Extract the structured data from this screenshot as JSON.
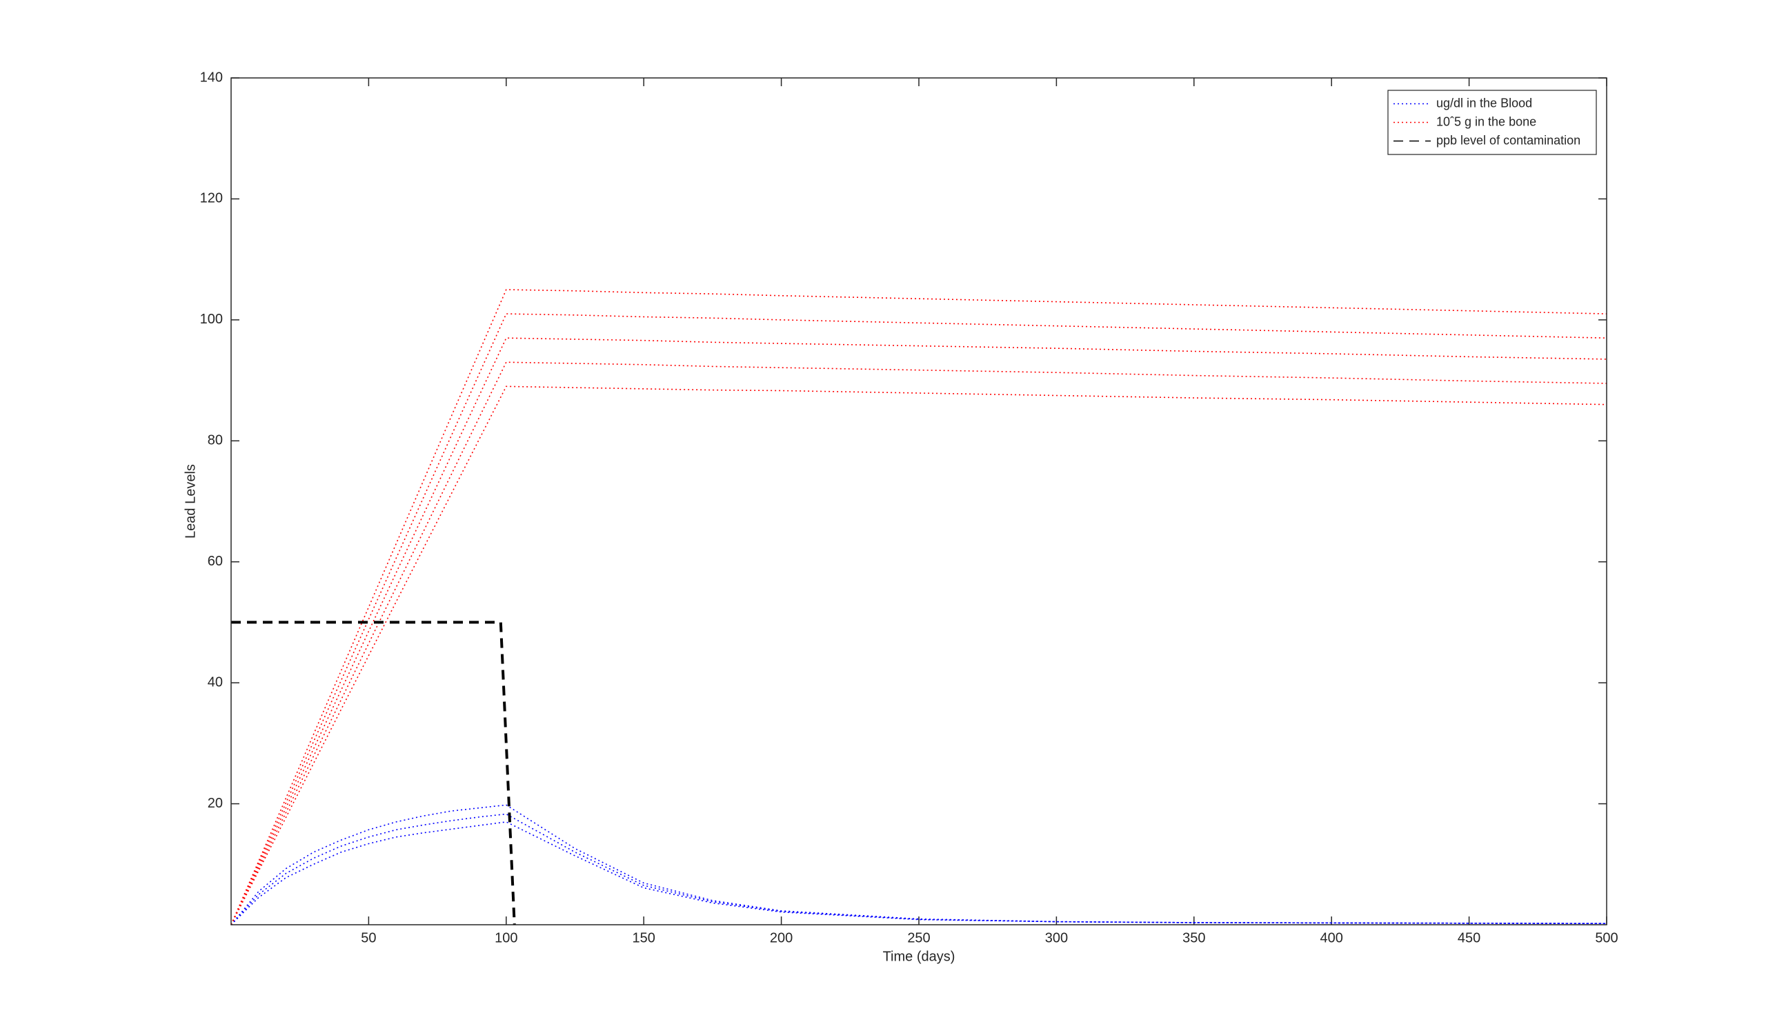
{
  "chart_data": {
    "type": "line",
    "xlabel": "Time (days)",
    "ylabel": "Lead Levels",
    "x": [
      0,
      10,
      20,
      30,
      40,
      50,
      60,
      70,
      80,
      90,
      100,
      125,
      150,
      175,
      200,
      250,
      300,
      350,
      400,
      450,
      500
    ],
    "xlim": [
      0,
      500
    ],
    "xticks": [
      50,
      100,
      150,
      200,
      250,
      300,
      350,
      400,
      450,
      500
    ],
    "ylim": [
      0,
      140
    ],
    "yticks": [
      20,
      40,
      60,
      80,
      100,
      120,
      140
    ],
    "grid": false,
    "legend": "top-right",
    "series": [
      {
        "name": "ug/dl in the Blood",
        "color": "#0000ff",
        "style": "dotted",
        "runs": [
          [
            0,
            5.5,
            9.3,
            12,
            14,
            15.7,
            17,
            18,
            18.8,
            19.3,
            19.8,
            12.6,
            6.9,
            4,
            2.3,
            0.95,
            0.5,
            0.35,
            0.3,
            0.25,
            0.2
          ],
          [
            0,
            5,
            8.5,
            11,
            13,
            14.5,
            15.7,
            16.5,
            17.2,
            17.8,
            18.3,
            12,
            6.5,
            3.8,
            2.2,
            0.9,
            0.5,
            0.35,
            0.3,
            0.25,
            0.2
          ],
          [
            0,
            4.5,
            7.8,
            10,
            12,
            13.4,
            14.5,
            15.2,
            15.8,
            16.4,
            17,
            11.4,
            6.1,
            3.6,
            2.1,
            0.85,
            0.5,
            0.35,
            0.3,
            0.25,
            0.2
          ]
        ]
      },
      {
        "name": "10ˆ5 g in the bone",
        "color": "#ff0000",
        "style": "dotted",
        "runs": [
          [
            0,
            8.9,
            17.8,
            26.7,
            35.6,
            44.5,
            53.4,
            62.3,
            71.2,
            80.1,
            89,
            88.8,
            88.6,
            88.4,
            88.3,
            87.9,
            87.5,
            87.1,
            86.8,
            86.4,
            86
          ],
          [
            0,
            9.3,
            18.6,
            27.9,
            37.2,
            46.5,
            55.8,
            65.1,
            74.4,
            83.7,
            93,
            92.8,
            92.6,
            92.3,
            92.1,
            91.7,
            91.3,
            90.8,
            90.4,
            89.9,
            89.5
          ],
          [
            0,
            9.7,
            19.4,
            29.1,
            38.8,
            48.5,
            58.2,
            67.9,
            77.6,
            87.3,
            97,
            96.8,
            96.6,
            96.3,
            96.1,
            95.7,
            95.3,
            94.8,
            94.4,
            93.9,
            93.5
          ],
          [
            0,
            10.1,
            20.2,
            30.3,
            40.4,
            50.5,
            60.6,
            70.7,
            80.8,
            90.9,
            101,
            100.8,
            100.5,
            100.3,
            100,
            99.5,
            99,
            98.5,
            98,
            97.5,
            97
          ],
          [
            0,
            10.5,
            21,
            31.5,
            42,
            52.5,
            63,
            73.5,
            84,
            94.5,
            105,
            104.8,
            104.5,
            104.3,
            104,
            103.5,
            103,
            102.5,
            102,
            101.5,
            101
          ]
        ]
      },
      {
        "name": "ppb level of contamination",
        "color": "#000000",
        "style": "dashed",
        "x": [
          0,
          98,
          103
        ],
        "values": [
          50,
          50,
          0
        ]
      }
    ]
  }
}
